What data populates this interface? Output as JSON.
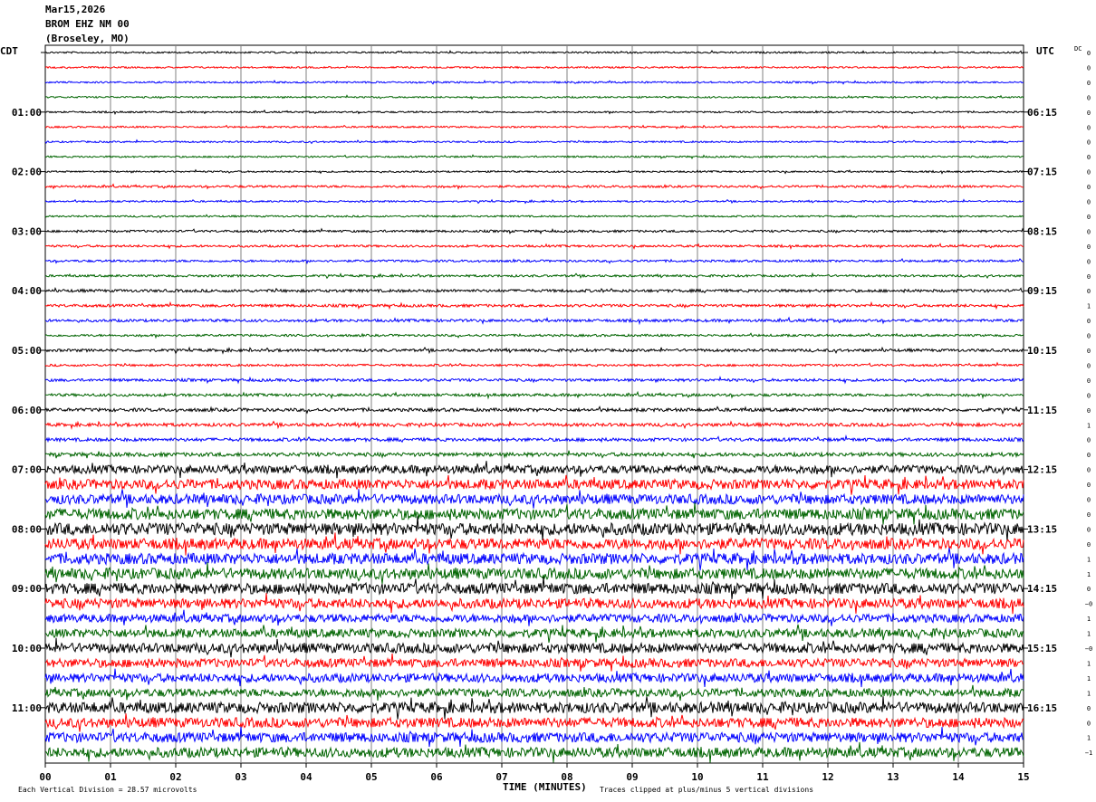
{
  "header": {
    "date": "Mar15,2026",
    "station": "BROM EHZ NM 00",
    "location": "(Broseley, MO)"
  },
  "chart_data": {
    "type": "line",
    "title": "",
    "xlabel": "TIME (MINUTES)",
    "xlim": [
      0,
      15
    ],
    "x_ticks": [
      "00",
      "01",
      "02",
      "03",
      "04",
      "05",
      "06",
      "07",
      "08",
      "09",
      "10",
      "11",
      "12",
      "13",
      "14",
      "15"
    ],
    "left_timezone": "CDT",
    "right_timezone": "UTC",
    "left_hour_labels": [
      "01:00",
      "02:00",
      "03:00",
      "04:00",
      "05:00",
      "06:00",
      "07:00",
      "08:00",
      "09:00",
      "10:00",
      "11:00"
    ],
    "right_hour_labels": [
      "06:15",
      "07:15",
      "08:15",
      "09:15",
      "10:15",
      "11:15",
      "12:15",
      "13:15",
      "14:15",
      "15:15",
      "16:15"
    ],
    "traces_per_hour": 4,
    "trace_count": 48,
    "trace_colors": [
      "#000000",
      "#ff0000",
      "#0000ff",
      "#006400"
    ],
    "dc_label": "DC",
    "dc_offsets": [
      "0",
      "0",
      "0",
      "0",
      "0",
      "0",
      "0",
      "0",
      "0",
      "0",
      "0",
      "0",
      "0",
      "0",
      "0",
      "0",
      "0",
      "1",
      "0",
      "0",
      "0",
      "0",
      "0",
      "0",
      "0",
      "1",
      "0",
      "0",
      "0",
      "0",
      "0",
      "0",
      "0",
      "0",
      "1",
      "1",
      "0",
      "−0",
      "1",
      "1",
      "−0",
      "1",
      "1",
      "1",
      "0",
      "0",
      "1",
      "−1"
    ],
    "trace_amplitude_divisions": [
      0.3,
      0.3,
      0.3,
      0.3,
      0.3,
      0.3,
      0.3,
      0.3,
      0.3,
      0.4,
      0.3,
      0.3,
      0.4,
      0.4,
      0.4,
      0.4,
      0.5,
      0.5,
      0.5,
      0.4,
      0.5,
      0.4,
      0.5,
      0.5,
      0.6,
      0.6,
      0.6,
      0.7,
      1.5,
      1.8,
      1.8,
      2.0,
      2.2,
      2.0,
      2.0,
      2.0,
      2.0,
      1.8,
      1.5,
      1.6,
      1.8,
      1.6,
      1.6,
      1.5,
      2.0,
      1.8,
      1.8,
      1.8
    ],
    "footer_left": "Each Vertical Division =   28.57 microvolts",
    "footer_right": "Traces clipped at plus/minus 5 vertical divisions"
  }
}
